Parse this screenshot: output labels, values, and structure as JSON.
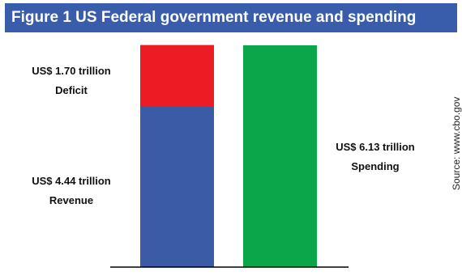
{
  "chart_data": {
    "type": "bar",
    "title": "Figure 1 US Federal government revenue and spending",
    "source": "Source: www.cbo.gov",
    "units": "US$ trillion",
    "ylim": [
      0,
      6.13
    ],
    "bars": [
      {
        "category": "",
        "segments": [
          {
            "name": "Revenue",
            "value": 4.44,
            "label": "US$ 4.44 trillion",
            "color": "#3b5ba7"
          },
          {
            "name": "Deficit",
            "value": 1.7,
            "label": "US$ 1.70 trillion",
            "color": "#ec1c24"
          }
        ]
      },
      {
        "category": "",
        "segments": [
          {
            "name": "Spending",
            "value": 6.13,
            "label": "US$ 6.13 trillion",
            "color": "#0ca64a"
          }
        ]
      }
    ]
  },
  "colors": {
    "title_bg": "#3a5dab",
    "title_text": "#ffffff",
    "axis": "#000000"
  }
}
